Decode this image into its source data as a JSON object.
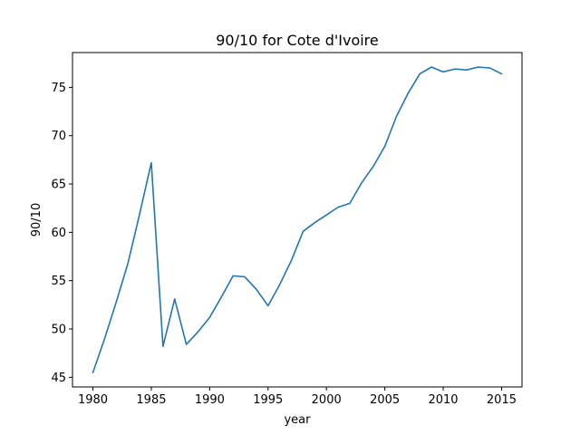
{
  "chart_data": {
    "type": "line",
    "title": "90/10 for Cote d'Ivoire",
    "xlabel": "year",
    "ylabel": "90/10",
    "xlim": [
      1978.25,
      2016.75
    ],
    "ylim": [
      44.0,
      78.6
    ],
    "xticks": [
      1980,
      1985,
      1990,
      1995,
      2000,
      2005,
      2010,
      2015
    ],
    "yticks": [
      45,
      50,
      55,
      60,
      65,
      70,
      75
    ],
    "grid": false,
    "legend": "none",
    "series": [
      {
        "name": "90/10",
        "color": "#1f77b4",
        "x": [
          1980,
          1981,
          1982,
          1983,
          1984,
          1985,
          1986,
          1987,
          1988,
          1989,
          1990,
          1991,
          1992,
          1993,
          1994,
          1995,
          1996,
          1997,
          1998,
          1999,
          2000,
          2001,
          2002,
          2003,
          2004,
          2005,
          2006,
          2007,
          2008,
          2009,
          2010,
          2011,
          2012,
          2013,
          2014,
          2015
        ],
        "values": [
          45.5,
          49.0,
          52.8,
          56.8,
          61.9,
          67.2,
          48.2,
          53.1,
          48.4,
          49.7,
          51.2,
          53.3,
          55.5,
          55.4,
          54.1,
          52.4,
          54.6,
          57.1,
          60.1,
          61.0,
          61.8,
          62.6,
          63.0,
          65.1,
          66.8,
          68.9,
          72.0,
          74.4,
          76.4,
          77.1,
          76.6,
          76.9,
          76.8,
          77.1,
          77.0,
          76.4
        ]
      }
    ]
  }
}
